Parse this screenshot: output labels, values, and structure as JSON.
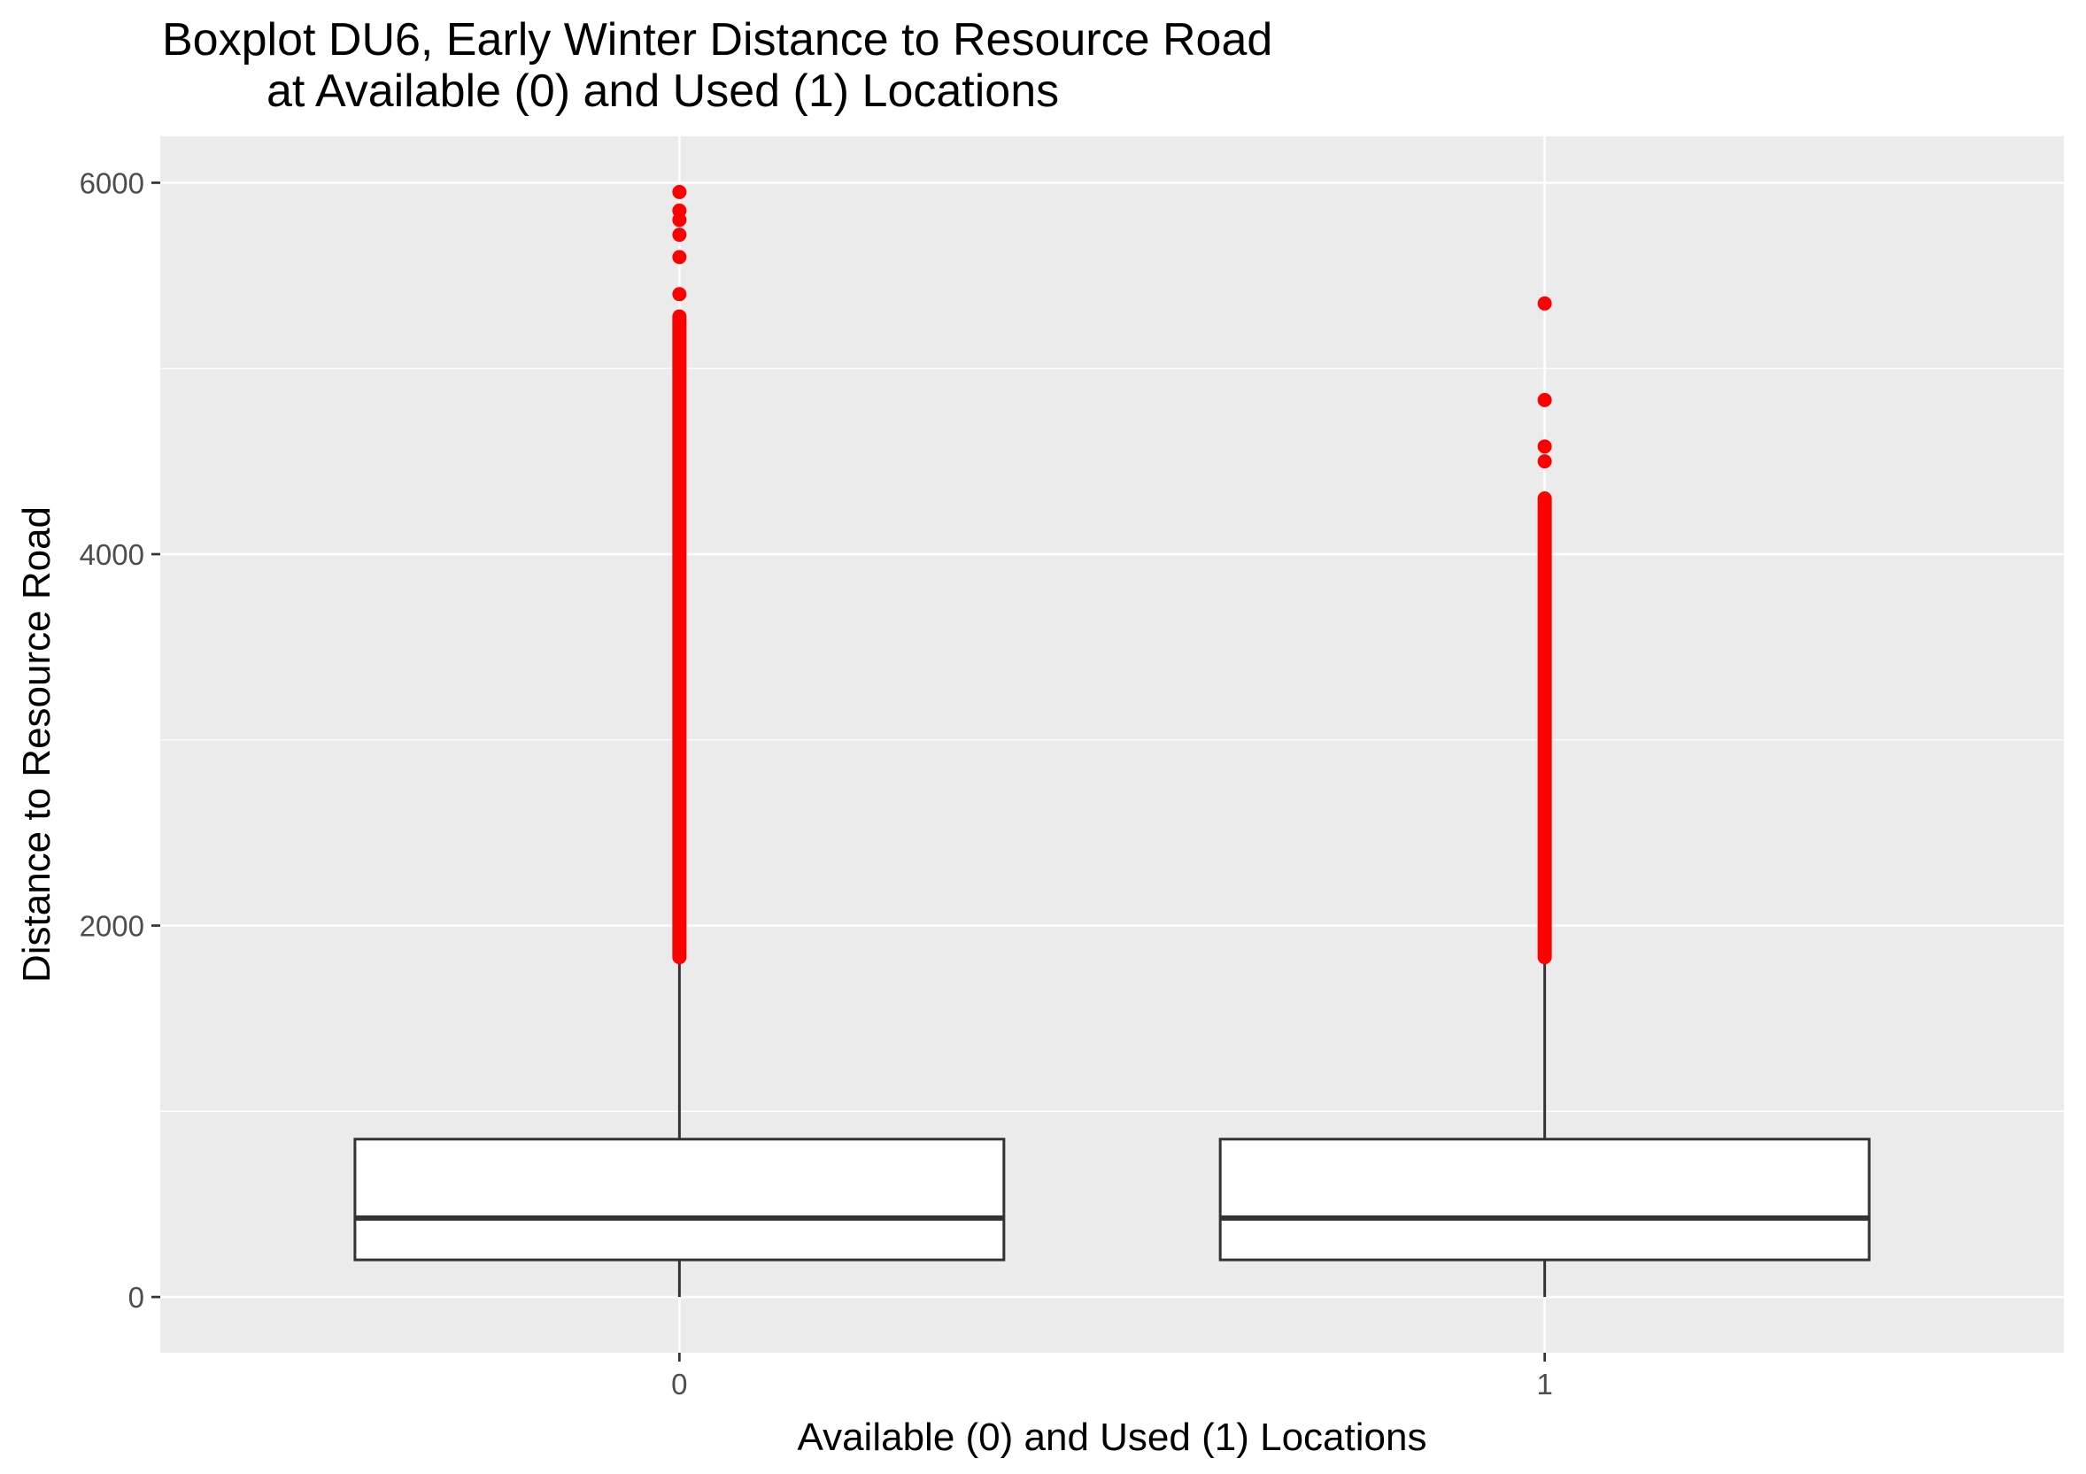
{
  "chart_data": {
    "type": "boxplot",
    "title": [
      "Boxplot DU6, Early Winter Distance to Resource Road",
      "at Available (0) and Used (1) Locations"
    ],
    "xlabel": "Available (0) and Used (1) Locations",
    "ylabel": "Distance to Resource Road",
    "categories": [
      "0",
      "1"
    ],
    "y_ticks": [
      0,
      2000,
      4000,
      6000
    ],
    "ylim": [
      -300,
      6250
    ],
    "grid": true,
    "panel_background": "#ebebeb",
    "outlier_color": "#ff0000",
    "box_fill": "#ffffff",
    "box_stroke": "#333333",
    "boxes": [
      {
        "category": "0",
        "whisker_low": 0,
        "q1": 200,
        "median": 425,
        "q3": 850,
        "whisker_high": 1830,
        "outlier_range": [
          1830,
          5280
        ],
        "outliers": [
          5400,
          5600,
          5720,
          5800,
          5850,
          5950
        ]
      },
      {
        "category": "1",
        "whisker_low": 0,
        "q1": 200,
        "median": 425,
        "q3": 850,
        "whisker_high": 1830,
        "outlier_range": [
          1830,
          4300
        ],
        "outliers": [
          4500,
          4580,
          4830,
          5350
        ]
      }
    ]
  }
}
